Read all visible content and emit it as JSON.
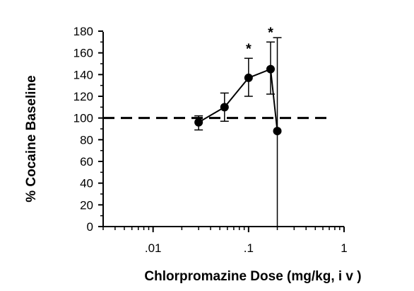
{
  "chart_data": {
    "type": "line",
    "xlabel": "Chlorpromazine Dose (mg/kg, i v )",
    "ylabel": "% Cocaine Baseline",
    "xscale": "log",
    "xlim": [
      0.003,
      1
    ],
    "ylim": [
      0,
      180
    ],
    "x_ticks": [
      0.01,
      0.1,
      1
    ],
    "x_tick_labels": [
      ".01",
      ".1",
      "1"
    ],
    "y_ticks": [
      0,
      20,
      40,
      60,
      80,
      100,
      120,
      140,
      160,
      180
    ],
    "y_tick_labels": [
      "0",
      "20",
      "40",
      "60",
      "80",
      "100",
      "120",
      "140",
      "160",
      "180"
    ],
    "reference_line": {
      "y": 100,
      "style": "dashed"
    },
    "grid": false,
    "series": [
      {
        "x": [
          0.03,
          0.056,
          0.1,
          0.17,
          0.2
        ],
        "y": [
          96,
          110,
          137,
          145,
          88
        ],
        "err_upper": [
          6,
          13,
          18,
          25,
          86
        ],
        "err_lower": [
          7,
          13,
          17,
          23,
          88
        ],
        "significant": [
          false,
          false,
          true,
          true,
          false
        ]
      }
    ],
    "annotation_text": "*"
  }
}
